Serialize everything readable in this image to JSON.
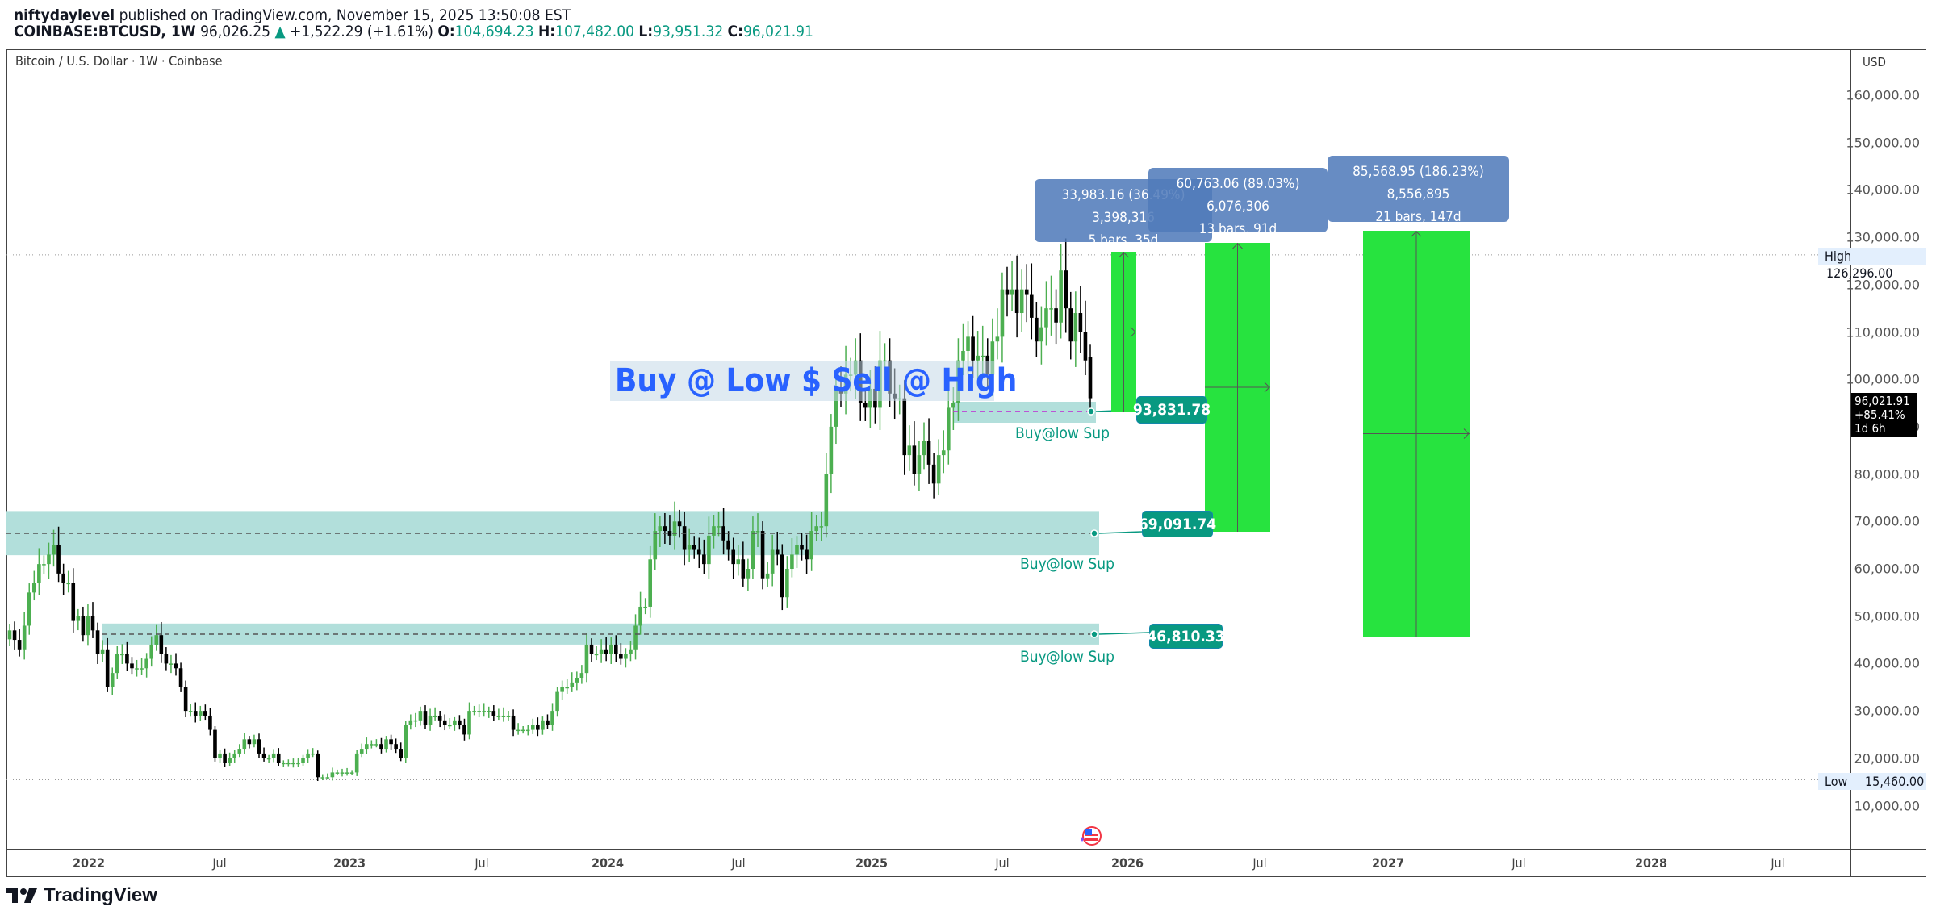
{
  "header": {
    "author": "niftydaylevel",
    "published": "published on TradingView.com, November 15, 2025 13:50:08 EST",
    "symbol": "COINBASE:BTCUSD, 1W",
    "last": "96,026.25",
    "change": "+1,522.29 (+1.61%)",
    "o_label": "O:",
    "o": "104,694.23",
    "h_label": "H:",
    "h": "107,482.00",
    "l_label": "L:",
    "l": "93,951.32",
    "c_label": "C:",
    "c": "96,021.91"
  },
  "chart_title": "Bitcoin / U.S. Dollar · 1W · Coinbase",
  "currency": "USD",
  "high_label": {
    "label": "High",
    "value": "126,296.00"
  },
  "low_label": {
    "label": "Low",
    "value": "15,460.00"
  },
  "current_price": {
    "price": "96,021.91",
    "change": "+85.41%",
    "countdown": "1d 6h"
  },
  "annotation_text": "Buy @ Low $ Sell @ High",
  "supports": [
    {
      "price": "93,831.78",
      "label": "Buy@low Sup"
    },
    {
      "price": "69,091.74",
      "label": "Buy@low Sup"
    },
    {
      "price": "46,810.33",
      "label": "Buy@low Sup"
    }
  ],
  "measures": [
    {
      "line1": "33,983.16 (36.49%) 3,398,316",
      "line2": "5 bars, 35d"
    },
    {
      "line1": "60,763.06 (89.03%) 6,076,306",
      "line2": "13 bars, 91d"
    },
    {
      "line1": "85,568.95 (186.23%) 8,556,895",
      "line2": "21 bars, 147d"
    }
  ],
  "logo": "TradingView",
  "colors": {
    "up": "#4caf50",
    "down": "#000000",
    "zone": "#b2dfdb",
    "tag": "#089981",
    "projection": "#27e33f",
    "measure": "#507bba",
    "annotation": "#2962ff"
  },
  "chart_data": {
    "type": "candlestick",
    "title": "Bitcoin / U.S. Dollar · 1W · Coinbase",
    "interval": "1W",
    "y_ticks": [
      "160,000.00",
      "150,000.00",
      "140,000.00",
      "130,000.00",
      "120,000.00",
      "110,000.00",
      "100,000.00",
      "90,000.00",
      "80,000.00",
      "70,000.00",
      "60,000.00",
      "50,000.00",
      "40,000.00",
      "30,000.00",
      "20,000.00",
      "10,000.00"
    ],
    "x_ticks": [
      "2022",
      "Jul",
      "2023",
      "Jul",
      "2024",
      "Jul",
      "2025",
      "Jul",
      "2026",
      "Jul",
      "2027",
      "Jul",
      "2028",
      "Jul"
    ],
    "ylim": [
      0,
      165000
    ],
    "weekly_close_k_usd_from_sep_2021": [
      47,
      45,
      43,
      48,
      55,
      57,
      61,
      61,
      63,
      65,
      59,
      57,
      57,
      49,
      50,
      46,
      50,
      47,
      42,
      43,
      35,
      38,
      42,
      42,
      40,
      39,
      39,
      39,
      41,
      44,
      46,
      42,
      40,
      40,
      39,
      35,
      30,
      30,
      29,
      30,
      29,
      26,
      20,
      21,
      19,
      20,
      21,
      22,
      24,
      23,
      24,
      21,
      20,
      20,
      21,
      19,
      19,
      19,
      19,
      19,
      20,
      21,
      21,
      16,
      16,
      16,
      17,
      17,
      17,
      17,
      17,
      21,
      22,
      23,
      23,
      23,
      22,
      24,
      23,
      22,
      20,
      27,
      28,
      28,
      30,
      27,
      29,
      29,
      28,
      27,
      27,
      28,
      27,
      25,
      30,
      30,
      30,
      30,
      30,
      29,
      29,
      29,
      29,
      26,
      26,
      26,
      26,
      27,
      26,
      28,
      27,
      30,
      34,
      35,
      35,
      36,
      37,
      38,
      44,
      42,
      42,
      43,
      42,
      44,
      42,
      41,
      42,
      43,
      48,
      52,
      52,
      62,
      68,
      69,
      68,
      67,
      70,
      69,
      64,
      65,
      64,
      63,
      61,
      67,
      69,
      69,
      66,
      64,
      61,
      62,
      58,
      60,
      68,
      68,
      58,
      59,
      64,
      63,
      54,
      60,
      63,
      65,
      64,
      62,
      68,
      69,
      69,
      80,
      90,
      98,
      97,
      101,
      101,
      104,
      95,
      94,
      98,
      94,
      104,
      104,
      97,
      96,
      96,
      84,
      86,
      80,
      84,
      87,
      82,
      78,
      84,
      85,
      94,
      95,
      104,
      106,
      109,
      104,
      105,
      105,
      101,
      108,
      109,
      119,
      118,
      119,
      114,
      119,
      118,
      113,
      108,
      111,
      115,
      115,
      112,
      123,
      115,
      108,
      114,
      110,
      104,
      96
    ],
    "last_week": {
      "open": 104694.23,
      "high": 107482.0,
      "low": 93951.32,
      "close": 96021.91
    },
    "all_time_high": 126296.0,
    "period_low": 15460.0,
    "support_levels": [
      93831.78,
      69091.74,
      46810.33
    ],
    "projections": [
      {
        "from": 93831.78,
        "gain": 33983.16,
        "pct": 36.49,
        "bars": 5
      },
      {
        "from": 69091.74,
        "gain": 60763.06,
        "pct": 89.03,
        "bars": 13
      },
      {
        "from": 46810.33,
        "gain": 85568.95,
        "pct": 186.23,
        "bars": 21
      }
    ]
  }
}
